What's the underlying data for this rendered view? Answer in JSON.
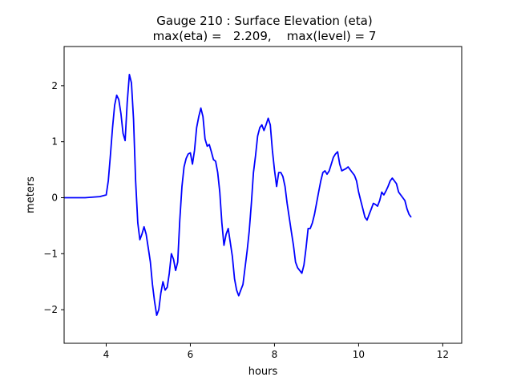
{
  "chart_data": {
    "type": "line",
    "title_line1": "Gauge 210 : Surface Elevation (eta)",
    "title_line2": "max(eta) =   2.209,    max(level) = 7",
    "xlabel": "hours",
    "ylabel": "meters",
    "xlim": [
      3.0,
      12.45
    ],
    "ylim": [
      -2.6,
      2.7
    ],
    "xticks": [
      4,
      6,
      8,
      10,
      12
    ],
    "xtick_labels": [
      "4",
      "6",
      "8",
      "10",
      "12"
    ],
    "yticks": [
      -2,
      -1,
      0,
      1,
      2
    ],
    "ytick_labels": [
      "−2",
      "−1",
      "0",
      "1",
      "2"
    ],
    "grid": false,
    "line_color": "#0000ff",
    "series": [
      {
        "points": [
          [
            3.0,
            0.0
          ],
          [
            3.5,
            0.0
          ],
          [
            3.85,
            0.02
          ],
          [
            4.0,
            0.05
          ],
          [
            4.05,
            0.3
          ],
          [
            4.1,
            0.75
          ],
          [
            4.15,
            1.25
          ],
          [
            4.2,
            1.65
          ],
          [
            4.25,
            1.83
          ],
          [
            4.3,
            1.75
          ],
          [
            4.35,
            1.5
          ],
          [
            4.4,
            1.15
          ],
          [
            4.45,
            1.02
          ],
          [
            4.5,
            1.7
          ],
          [
            4.55,
            2.2
          ],
          [
            4.6,
            2.05
          ],
          [
            4.65,
            1.4
          ],
          [
            4.7,
            0.3
          ],
          [
            4.75,
            -0.45
          ],
          [
            4.8,
            -0.75
          ],
          [
            4.85,
            -0.65
          ],
          [
            4.9,
            -0.52
          ],
          [
            4.95,
            -0.65
          ],
          [
            5.0,
            -0.9
          ],
          [
            5.05,
            -1.15
          ],
          [
            5.1,
            -1.55
          ],
          [
            5.15,
            -1.85
          ],
          [
            5.2,
            -2.1
          ],
          [
            5.25,
            -2.0
          ],
          [
            5.3,
            -1.7
          ],
          [
            5.35,
            -1.5
          ],
          [
            5.4,
            -1.65
          ],
          [
            5.45,
            -1.6
          ],
          [
            5.5,
            -1.35
          ],
          [
            5.55,
            -1.0
          ],
          [
            5.6,
            -1.1
          ],
          [
            5.65,
            -1.3
          ],
          [
            5.7,
            -1.15
          ],
          [
            5.75,
            -0.4
          ],
          [
            5.8,
            0.2
          ],
          [
            5.85,
            0.55
          ],
          [
            5.9,
            0.7
          ],
          [
            5.95,
            0.78
          ],
          [
            6.0,
            0.8
          ],
          [
            6.05,
            0.6
          ],
          [
            6.1,
            0.85
          ],
          [
            6.15,
            1.25
          ],
          [
            6.2,
            1.45
          ],
          [
            6.25,
            1.6
          ],
          [
            6.3,
            1.45
          ],
          [
            6.35,
            1.05
          ],
          [
            6.4,
            0.92
          ],
          [
            6.45,
            0.95
          ],
          [
            6.5,
            0.82
          ],
          [
            6.55,
            0.68
          ],
          [
            6.6,
            0.65
          ],
          [
            6.65,
            0.45
          ],
          [
            6.7,
            0.1
          ],
          [
            6.75,
            -0.45
          ],
          [
            6.8,
            -0.85
          ],
          [
            6.85,
            -0.65
          ],
          [
            6.9,
            -0.55
          ],
          [
            6.95,
            -0.8
          ],
          [
            7.0,
            -1.05
          ],
          [
            7.05,
            -1.45
          ],
          [
            7.1,
            -1.65
          ],
          [
            7.15,
            -1.75
          ],
          [
            7.2,
            -1.65
          ],
          [
            7.25,
            -1.55
          ],
          [
            7.3,
            -1.25
          ],
          [
            7.35,
            -0.95
          ],
          [
            7.4,
            -0.6
          ],
          [
            7.45,
            -0.1
          ],
          [
            7.5,
            0.45
          ],
          [
            7.55,
            0.75
          ],
          [
            7.6,
            1.1
          ],
          [
            7.65,
            1.25
          ],
          [
            7.7,
            1.3
          ],
          [
            7.75,
            1.2
          ],
          [
            7.8,
            1.3
          ],
          [
            7.85,
            1.42
          ],
          [
            7.9,
            1.3
          ],
          [
            7.95,
            0.85
          ],
          [
            8.0,
            0.5
          ],
          [
            8.05,
            0.2
          ],
          [
            8.1,
            0.45
          ],
          [
            8.15,
            0.45
          ],
          [
            8.2,
            0.38
          ],
          [
            8.25,
            0.2
          ],
          [
            8.3,
            -0.1
          ],
          [
            8.35,
            -0.35
          ],
          [
            8.4,
            -0.6
          ],
          [
            8.45,
            -0.85
          ],
          [
            8.5,
            -1.15
          ],
          [
            8.55,
            -1.25
          ],
          [
            8.6,
            -1.3
          ],
          [
            8.65,
            -1.35
          ],
          [
            8.7,
            -1.2
          ],
          [
            8.75,
            -0.9
          ],
          [
            8.8,
            -0.55
          ],
          [
            8.85,
            -0.55
          ],
          [
            8.9,
            -0.45
          ],
          [
            8.95,
            -0.3
          ],
          [
            9.0,
            -0.1
          ],
          [
            9.05,
            0.1
          ],
          [
            9.1,
            0.3
          ],
          [
            9.15,
            0.45
          ],
          [
            9.2,
            0.48
          ],
          [
            9.25,
            0.42
          ],
          [
            9.3,
            0.48
          ],
          [
            9.35,
            0.6
          ],
          [
            9.4,
            0.72
          ],
          [
            9.45,
            0.78
          ],
          [
            9.5,
            0.82
          ],
          [
            9.55,
            0.6
          ],
          [
            9.6,
            0.48
          ],
          [
            9.65,
            0.5
          ],
          [
            9.7,
            0.52
          ],
          [
            9.75,
            0.55
          ],
          [
            9.8,
            0.5
          ],
          [
            9.85,
            0.45
          ],
          [
            9.9,
            0.4
          ],
          [
            9.95,
            0.3
          ],
          [
            10.0,
            0.1
          ],
          [
            10.05,
            -0.05
          ],
          [
            10.1,
            -0.2
          ],
          [
            10.15,
            -0.35
          ],
          [
            10.2,
            -0.4
          ],
          [
            10.25,
            -0.3
          ],
          [
            10.3,
            -0.2
          ],
          [
            10.35,
            -0.1
          ],
          [
            10.4,
            -0.12
          ],
          [
            10.45,
            -0.15
          ],
          [
            10.5,
            -0.05
          ],
          [
            10.55,
            0.1
          ],
          [
            10.6,
            0.05
          ],
          [
            10.65,
            0.12
          ],
          [
            10.7,
            0.2
          ],
          [
            10.75,
            0.3
          ],
          [
            10.8,
            0.35
          ],
          [
            10.85,
            0.3
          ],
          [
            10.9,
            0.25
          ],
          [
            10.95,
            0.1
          ],
          [
            11.0,
            0.05
          ],
          [
            11.05,
            0.0
          ],
          [
            11.1,
            -0.05
          ],
          [
            11.15,
            -0.2
          ],
          [
            11.2,
            -0.3
          ],
          [
            11.25,
            -0.35
          ]
        ]
      }
    ]
  }
}
